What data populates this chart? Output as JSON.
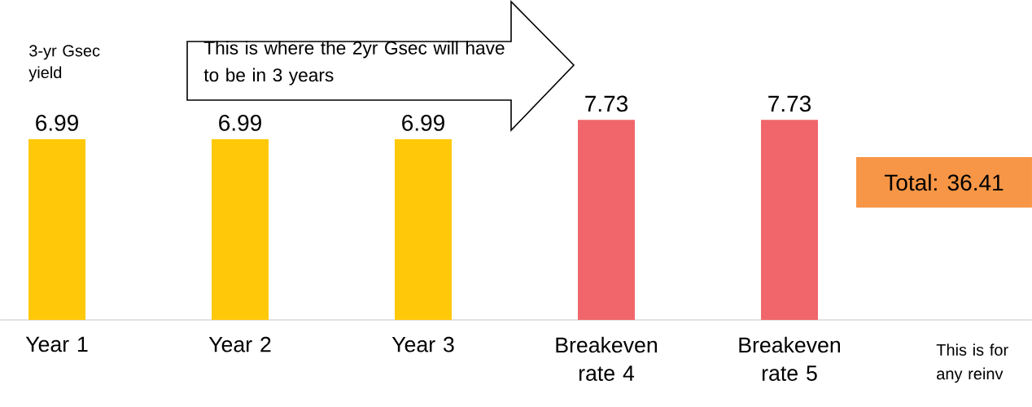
{
  "chart_data": {
    "type": "bar",
    "categories": [
      "Year 1",
      "Year 2",
      "Year 3",
      "Breakeven rate 4",
      "Breakeven rate 5"
    ],
    "values": [
      6.99,
      6.99,
      6.99,
      7.73,
      7.73
    ],
    "colors": [
      "#ffc90a",
      "#ffc90a",
      "#ffc90a",
      "#f0666b",
      "#f0666b"
    ],
    "data_labels": true,
    "annotations": [
      "3-yr Gsec yield",
      "This is where the 2yr Gsec will have to be in 3 years",
      "Total: 36.41",
      "This is for any reinv"
    ]
  }
}
